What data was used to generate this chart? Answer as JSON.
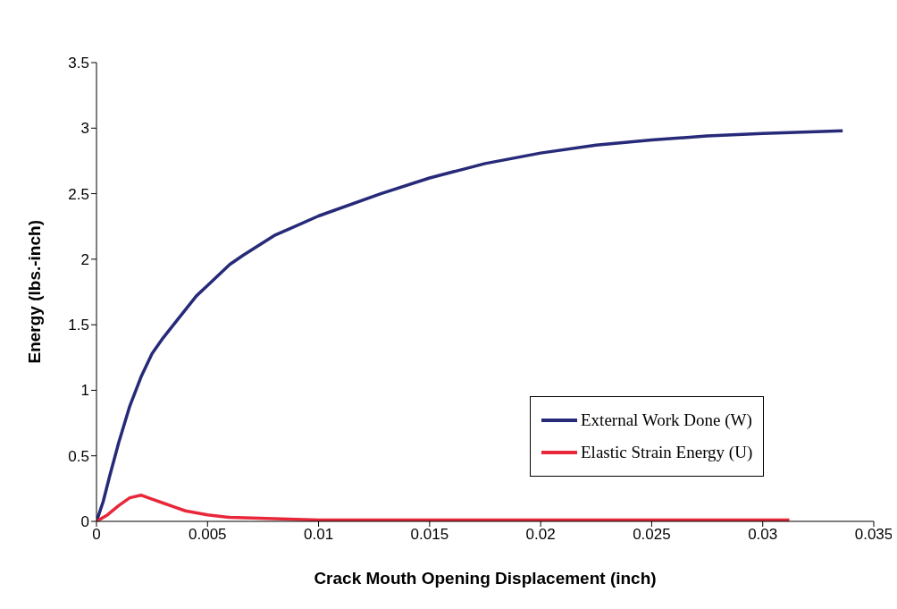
{
  "chart_data": {
    "type": "line",
    "xlabel": "Crack Mouth Opening Displacement (inch)",
    "ylabel": "Energy (lbs.-inch)",
    "xlim": [
      0,
      0.035
    ],
    "xticks": [
      0,
      0.005,
      0.01,
      0.015,
      0.02,
      0.025,
      0.03,
      0.035
    ],
    "ylim": [
      0,
      3.5
    ],
    "yticks": [
      0,
      0.5,
      1,
      1.5,
      2,
      2.5,
      3,
      3.5
    ],
    "grid": false,
    "legend": "bottom right",
    "marker": "none",
    "line_style": "solid",
    "series": [
      {
        "name": "External Work Done (W)",
        "color": "#262a78",
        "x": [
          0,
          0.0003,
          0.0006,
          0.001,
          0.0015,
          0.002,
          0.0025,
          0.003,
          0.0037,
          0.0045,
          0.005,
          0.006,
          0.0066,
          0.008,
          0.01,
          0.0128,
          0.015,
          0.0175,
          0.02,
          0.0225,
          0.025,
          0.0275,
          0.03,
          0.0336
        ],
        "values": [
          0,
          0.15,
          0.35,
          0.6,
          0.88,
          1.1,
          1.28,
          1.4,
          1.55,
          1.72,
          1.8,
          1.96,
          2.03,
          2.18,
          2.33,
          2.5,
          2.62,
          2.73,
          2.81,
          2.87,
          2.91,
          2.94,
          2.96,
          2.98
        ]
      },
      {
        "name": "Elastic Strain Energy (U)",
        "color": "#e8283a",
        "x": [
          0,
          0.0005,
          0.001,
          0.0015,
          0.002,
          0.0025,
          0.003,
          0.0035,
          0.004,
          0.005,
          0.006,
          0.008,
          0.01,
          0.015,
          0.02,
          0.025,
          0.0312
        ],
        "values": [
          0,
          0.05,
          0.12,
          0.18,
          0.2,
          0.17,
          0.14,
          0.11,
          0.08,
          0.05,
          0.03,
          0.02,
          0.01,
          0.01,
          0.01,
          0.01,
          0.01
        ]
      }
    ]
  }
}
